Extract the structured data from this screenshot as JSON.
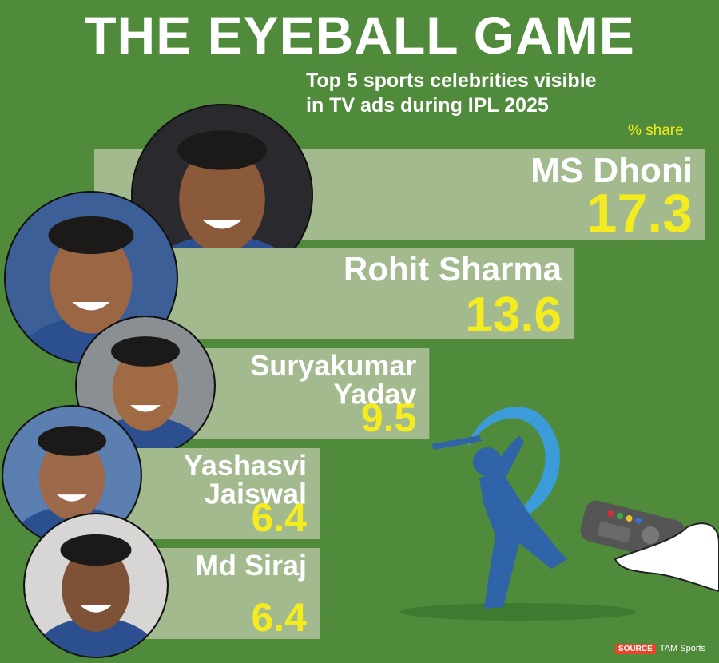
{
  "title": "THE EYEBALL GAME",
  "subtitle_line1": "Top 5 sports celebrities visible",
  "subtitle_line2": "in TV ads during IPL 2025",
  "unit_label": "% share",
  "source_tag": "SOURCE",
  "source_name": "TAM Sports",
  "colors": {
    "background": "#4f8b3b",
    "bar": "#a3ba8f",
    "value_text": "#f4ec1f",
    "name_text": "#ffffff",
    "bat_blue": "#2f64a9",
    "swoosh": "#3b9ad9"
  },
  "chart_data": {
    "type": "bar",
    "orientation": "horizontal",
    "title": "THE EYEBALL GAME",
    "subtitle": "Top 5 sports celebrities visible in TV ads during IPL 2025",
    "unit": "% share",
    "categories": [
      "MS Dhoni",
      "Rohit Sharma",
      "Suryakumar Yadav",
      "Yashasvi Jaiswal",
      "Md Siraj"
    ],
    "labels": [
      [
        "MS Dhoni"
      ],
      [
        "Rohit Sharma"
      ],
      [
        "Suryakumar",
        "Yadav"
      ],
      [
        "Yashasvi",
        "Jaiswal"
      ],
      [
        "Md Siraj"
      ]
    ],
    "values": [
      17.3,
      13.6,
      9.5,
      6.4,
      6.4
    ],
    "value_labels": [
      "17.3",
      "13.6",
      "9.5",
      "6.4",
      "6.4"
    ],
    "source": "TAM Sports"
  }
}
